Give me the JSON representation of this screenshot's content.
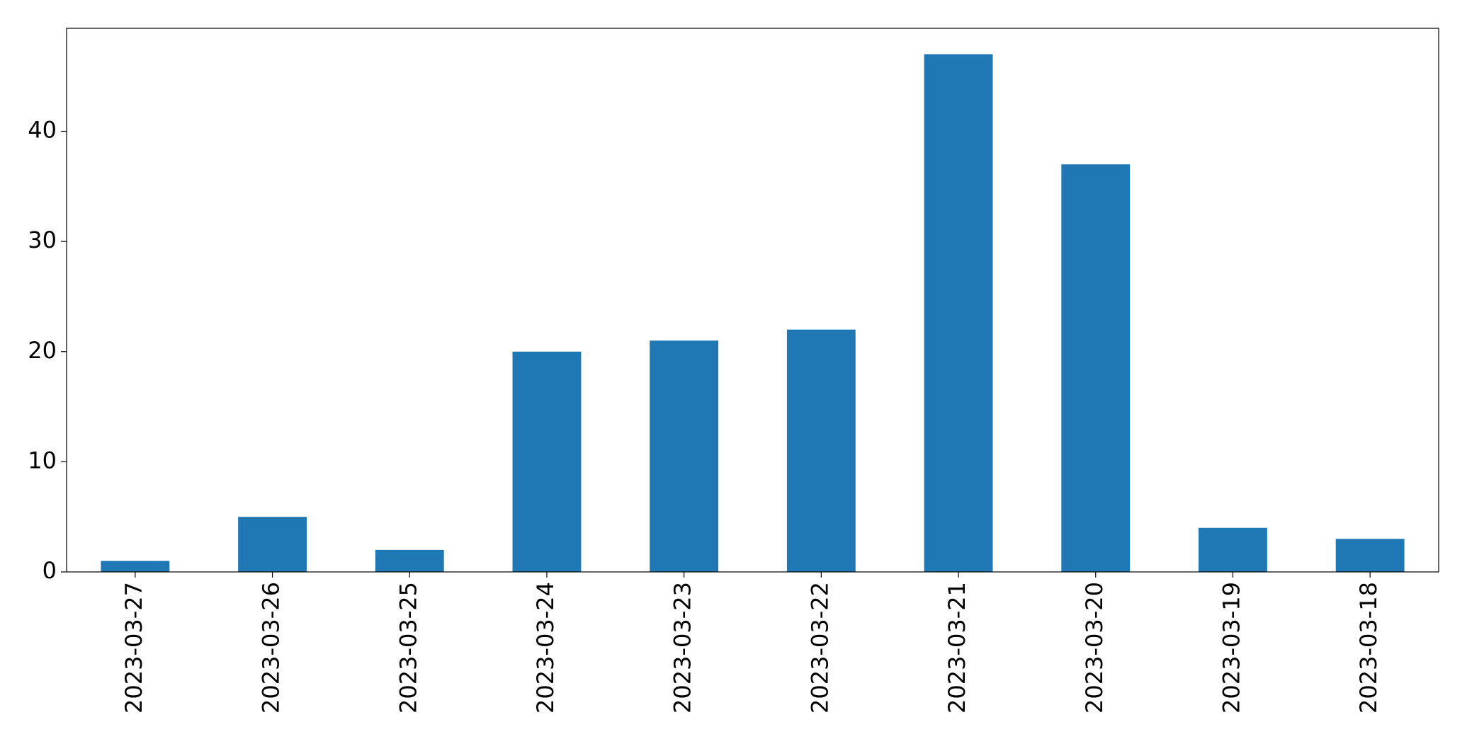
{
  "chart_data": {
    "type": "bar",
    "categories": [
      "2023-03-27",
      "2023-03-26",
      "2023-03-25",
      "2023-03-24",
      "2023-03-23",
      "2023-03-22",
      "2023-03-21",
      "2023-03-20",
      "2023-03-19",
      "2023-03-18"
    ],
    "values": [
      1,
      5,
      2,
      20,
      21,
      22,
      47,
      37,
      4,
      3
    ],
    "color": "#1f77b4",
    "ylim": [
      0,
      49.35
    ],
    "yticks": [
      0,
      10,
      20,
      30,
      40
    ],
    "grid": false
  }
}
